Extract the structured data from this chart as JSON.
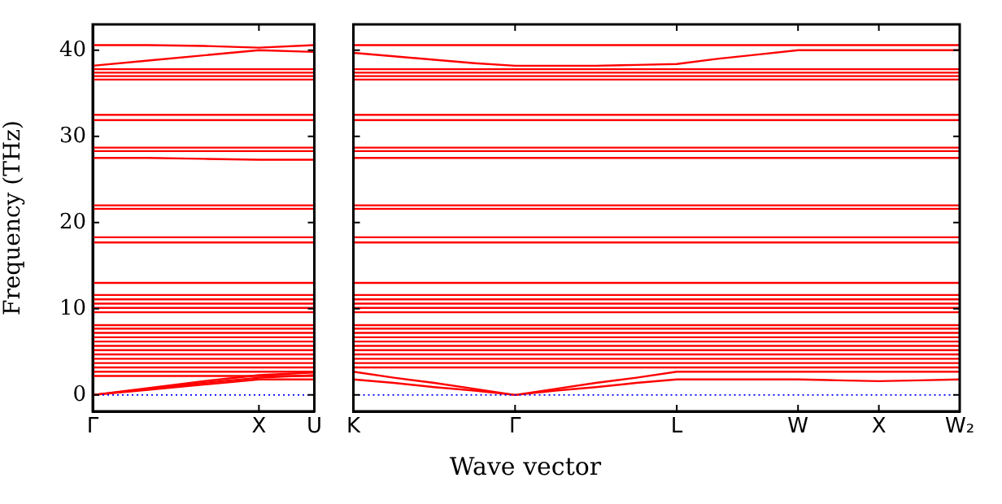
{
  "chart_data": [
    {
      "type": "line",
      "ylabel": "Frequency (THz)",
      "categories": [
        "Γ",
        null,
        null,
        "X",
        "U"
      ],
      "ylim": [
        -1.9,
        43
      ],
      "yticks": [
        0,
        10,
        20,
        30,
        40
      ],
      "marker": "none",
      "line_style": "solid",
      "legend": false,
      "ref_lines": [
        {
          "axis": "y",
          "value": 0,
          "color": "#0000ff",
          "line_style": "dotted"
        }
      ],
      "series": [
        {
          "color": "#ff0000",
          "values": [
            0,
            0.6,
            1.2,
            1.8,
            1.8
          ]
        },
        {
          "color": "#ff0000",
          "values": [
            0,
            0.7,
            1.4,
            2.0,
            2.3
          ]
        },
        {
          "color": "#ff0000",
          "values": [
            0,
            0.8,
            1.6,
            2.3,
            2.6
          ]
        },
        {
          "color": "#ff0000",
          "values": [
            2.2,
            2.2,
            2.2,
            2.2,
            2.2
          ]
        },
        {
          "color": "#ff0000",
          "values": [
            2.7,
            2.7,
            2.7,
            2.7,
            2.7
          ]
        },
        {
          "color": "#ff0000",
          "values": [
            3.2,
            3.2,
            3.2,
            3.2,
            3.2
          ]
        },
        {
          "color": "#ff0000",
          "values": [
            3.7,
            3.7,
            3.7,
            3.7,
            3.7
          ]
        },
        {
          "color": "#ff0000",
          "values": [
            4.2,
            4.2,
            4.2,
            4.2,
            4.2
          ]
        },
        {
          "color": "#ff0000",
          "values": [
            4.7,
            4.7,
            4.7,
            4.7,
            4.7
          ]
        },
        {
          "color": "#ff0000",
          "values": [
            5.2,
            5.2,
            5.2,
            5.2,
            5.2
          ]
        },
        {
          "color": "#ff0000",
          "values": [
            5.7,
            5.7,
            5.7,
            5.7,
            5.7
          ]
        },
        {
          "color": "#ff0000",
          "values": [
            6.2,
            6.2,
            6.2,
            6.2,
            6.2
          ]
        },
        {
          "color": "#ff0000",
          "values": [
            6.7,
            6.7,
            6.7,
            6.7,
            6.7
          ]
        },
        {
          "color": "#ff0000",
          "values": [
            7.2,
            7.2,
            7.2,
            7.2,
            7.2
          ]
        },
        {
          "color": "#ff0000",
          "values": [
            7.7,
            7.7,
            7.7,
            7.7,
            7.7
          ]
        },
        {
          "color": "#ff0000",
          "values": [
            8.1,
            8.1,
            8.1,
            8.1,
            8.1
          ]
        },
        {
          "color": "#ff0000",
          "values": [
            9.6,
            9.6,
            9.6,
            9.6,
            9.6
          ]
        },
        {
          "color": "#ff0000",
          "values": [
            10.1,
            10.1,
            10.1,
            10.1,
            10.1
          ]
        },
        {
          "color": "#ff0000",
          "values": [
            10.6,
            10.6,
            10.6,
            10.6,
            10.6
          ]
        },
        {
          "color": "#ff0000",
          "values": [
            11.1,
            11.1,
            11.1,
            11.1,
            11.1
          ]
        },
        {
          "color": "#ff0000",
          "values": [
            11.6,
            11.6,
            11.6,
            11.6,
            11.6
          ]
        },
        {
          "color": "#ff0000",
          "values": [
            13.0,
            13.0,
            13.0,
            13.0,
            13.0
          ]
        },
        {
          "color": "#ff0000",
          "values": [
            17.7,
            17.7,
            17.7,
            17.7,
            17.7
          ]
        },
        {
          "color": "#ff0000",
          "values": [
            18.3,
            18.3,
            18.3,
            18.3,
            18.3
          ]
        },
        {
          "color": "#ff0000",
          "values": [
            21.6,
            21.6,
            21.6,
            21.6,
            21.6
          ]
        },
        {
          "color": "#ff0000",
          "values": [
            22.0,
            22.0,
            22.0,
            22.0,
            22.0
          ]
        },
        {
          "color": "#ff0000",
          "values": [
            27.5,
            27.5,
            27.4,
            27.3,
            27.3
          ]
        },
        {
          "color": "#ff0000",
          "values": [
            28.3,
            28.3,
            28.3,
            28.3,
            28.3
          ]
        },
        {
          "color": "#ff0000",
          "values": [
            28.7,
            28.7,
            28.7,
            28.7,
            28.7
          ]
        },
        {
          "color": "#ff0000",
          "values": [
            31.9,
            31.9,
            31.9,
            31.9,
            31.9
          ]
        },
        {
          "color": "#ff0000",
          "values": [
            32.5,
            32.5,
            32.5,
            32.5,
            32.5
          ]
        },
        {
          "color": "#ff0000",
          "values": [
            36.6,
            36.6,
            36.6,
            36.6,
            36.6
          ]
        },
        {
          "color": "#ff0000",
          "values": [
            37.0,
            37.0,
            37.0,
            37.0,
            37.0
          ]
        },
        {
          "color": "#ff0000",
          "values": [
            37.4,
            37.4,
            37.4,
            37.4,
            37.4
          ]
        },
        {
          "color": "#ff0000",
          "values": [
            37.8,
            37.8,
            37.8,
            37.8,
            37.8
          ]
        },
        {
          "color": "#ff0000",
          "values": [
            38.2,
            38.8,
            39.4,
            40.0,
            39.8
          ]
        },
        {
          "color": "#ff0000",
          "values": [
            40.6,
            40.6,
            40.5,
            40.3,
            40.6
          ]
        }
      ]
    },
    {
      "type": "line",
      "xlabel": "Wave vector",
      "categories": [
        "K",
        null,
        null,
        null,
        "Γ",
        null,
        null,
        null,
        "L",
        null,
        null,
        "W",
        null,
        "X",
        null,
        "W₂"
      ],
      "ylim": [
        -1.9,
        43
      ],
      "yticks": [
        0,
        10,
        20,
        30,
        40
      ],
      "tick_labels": "x",
      "marker": "none",
      "line_style": "solid",
      "legend": false,
      "ref_lines": [
        {
          "axis": "y",
          "value": 0,
          "color": "#0000ff",
          "line_style": "dotted"
        }
      ],
      "series": [
        {
          "color": "#ff0000",
          "values": [
            1.8,
            1.4,
            0.9,
            0.5,
            0,
            0.5,
            0.9,
            1.4,
            1.8,
            1.8,
            1.8,
            1.8,
            1.7,
            1.6,
            1.7,
            1.8
          ]
        },
        {
          "color": "#ff0000",
          "values": [
            2.7,
            2.0,
            1.4,
            0.7,
            0,
            0.7,
            1.4,
            2.0,
            2.7,
            2.7,
            2.7,
            2.7,
            2.7,
            2.7,
            2.7,
            2.7
          ]
        },
        {
          "color": "#ff0000",
          "values": [
            3.2,
            3.2,
            3.2,
            3.2,
            3.2,
            3.2,
            3.2,
            3.2,
            3.2,
            3.2,
            3.2,
            3.2,
            3.2,
            3.2,
            3.2,
            3.2
          ]
        },
        {
          "color": "#ff0000",
          "values": [
            3.7,
            3.7,
            3.7,
            3.7,
            3.7,
            3.7,
            3.7,
            3.7,
            3.7,
            3.7,
            3.7,
            3.7,
            3.7,
            3.7,
            3.7,
            3.7
          ]
        },
        {
          "color": "#ff0000",
          "values": [
            4.2,
            4.2,
            4.2,
            4.2,
            4.2,
            4.2,
            4.2,
            4.2,
            4.2,
            4.2,
            4.2,
            4.2,
            4.2,
            4.2,
            4.2,
            4.2
          ]
        },
        {
          "color": "#ff0000",
          "values": [
            4.7,
            4.7,
            4.7,
            4.7,
            4.7,
            4.7,
            4.7,
            4.7,
            4.7,
            4.7,
            4.7,
            4.7,
            4.7,
            4.7,
            4.7,
            4.7
          ]
        },
        {
          "color": "#ff0000",
          "values": [
            5.2,
            5.2,
            5.2,
            5.2,
            5.2,
            5.2,
            5.2,
            5.2,
            5.2,
            5.2,
            5.2,
            5.2,
            5.2,
            5.2,
            5.2,
            5.2
          ]
        },
        {
          "color": "#ff0000",
          "values": [
            5.7,
            5.7,
            5.7,
            5.7,
            5.7,
            5.7,
            5.7,
            5.7,
            5.7,
            5.7,
            5.7,
            5.7,
            5.7,
            5.7,
            5.7,
            5.7
          ]
        },
        {
          "color": "#ff0000",
          "values": [
            6.2,
            6.2,
            6.2,
            6.2,
            6.2,
            6.2,
            6.2,
            6.2,
            6.2,
            6.2,
            6.2,
            6.2,
            6.2,
            6.2,
            6.2,
            6.2
          ]
        },
        {
          "color": "#ff0000",
          "values": [
            6.7,
            6.7,
            6.7,
            6.7,
            6.7,
            6.7,
            6.7,
            6.7,
            6.7,
            6.7,
            6.7,
            6.7,
            6.7,
            6.7,
            6.7,
            6.7
          ]
        },
        {
          "color": "#ff0000",
          "values": [
            7.2,
            7.2,
            7.2,
            7.2,
            7.2,
            7.2,
            7.2,
            7.2,
            7.2,
            7.2,
            7.2,
            7.2,
            7.2,
            7.2,
            7.2,
            7.2
          ]
        },
        {
          "color": "#ff0000",
          "values": [
            7.7,
            7.7,
            7.7,
            7.7,
            7.7,
            7.7,
            7.7,
            7.7,
            7.7,
            7.7,
            7.7,
            7.7,
            7.7,
            7.7,
            7.7,
            7.7
          ]
        },
        {
          "color": "#ff0000",
          "values": [
            8.1,
            8.1,
            8.1,
            8.1,
            8.1,
            8.1,
            8.1,
            8.1,
            8.1,
            8.1,
            8.1,
            8.1,
            8.1,
            8.1,
            8.1,
            8.1
          ]
        },
        {
          "color": "#ff0000",
          "values": [
            9.6,
            9.6,
            9.6,
            9.6,
            9.6,
            9.6,
            9.6,
            9.6,
            9.6,
            9.6,
            9.6,
            9.6,
            9.6,
            9.6,
            9.6,
            9.6
          ]
        },
        {
          "color": "#ff0000",
          "values": [
            10.1,
            10.1,
            10.1,
            10.1,
            10.1,
            10.1,
            10.1,
            10.1,
            10.1,
            10.1,
            10.1,
            10.1,
            10.1,
            10.1,
            10.1,
            10.1
          ]
        },
        {
          "color": "#ff0000",
          "values": [
            10.6,
            10.6,
            10.6,
            10.6,
            10.6,
            10.6,
            10.6,
            10.6,
            10.6,
            10.6,
            10.6,
            10.6,
            10.6,
            10.6,
            10.6,
            10.6
          ]
        },
        {
          "color": "#ff0000",
          "values": [
            11.1,
            11.1,
            11.1,
            11.1,
            11.1,
            11.1,
            11.1,
            11.1,
            11.1,
            11.1,
            11.1,
            11.1,
            11.1,
            11.1,
            11.1,
            11.1
          ]
        },
        {
          "color": "#ff0000",
          "values": [
            11.6,
            11.6,
            11.6,
            11.6,
            11.6,
            11.6,
            11.6,
            11.6,
            11.6,
            11.6,
            11.6,
            11.6,
            11.6,
            11.6,
            11.6,
            11.6
          ]
        },
        {
          "color": "#ff0000",
          "values": [
            13.0,
            13.0,
            13.0,
            13.0,
            13.0,
            13.0,
            13.0,
            13.0,
            13.0,
            13.0,
            13.0,
            13.0,
            13.0,
            13.0,
            13.0,
            13.0
          ]
        },
        {
          "color": "#ff0000",
          "values": [
            17.7,
            17.7,
            17.7,
            17.7,
            17.7,
            17.7,
            17.7,
            17.7,
            17.7,
            17.7,
            17.7,
            17.7,
            17.7,
            17.7,
            17.7,
            17.7
          ]
        },
        {
          "color": "#ff0000",
          "values": [
            18.3,
            18.3,
            18.3,
            18.3,
            18.3,
            18.3,
            18.3,
            18.3,
            18.3,
            18.3,
            18.3,
            18.3,
            18.3,
            18.3,
            18.3,
            18.3
          ]
        },
        {
          "color": "#ff0000",
          "values": [
            21.6,
            21.6,
            21.6,
            21.6,
            21.6,
            21.6,
            21.6,
            21.6,
            21.6,
            21.6,
            21.6,
            21.6,
            21.6,
            21.6,
            21.6,
            21.6
          ]
        },
        {
          "color": "#ff0000",
          "values": [
            22.0,
            22.0,
            22.0,
            22.0,
            22.0,
            22.0,
            22.0,
            22.0,
            22.0,
            22.0,
            22.0,
            22.0,
            22.0,
            22.0,
            22.0,
            22.0
          ]
        },
        {
          "color": "#ff0000",
          "values": [
            27.5,
            27.5,
            27.5,
            27.5,
            27.5,
            27.5,
            27.5,
            27.5,
            27.5,
            27.5,
            27.5,
            27.5,
            27.5,
            27.5,
            27.5,
            27.5
          ]
        },
        {
          "color": "#ff0000",
          "values": [
            28.3,
            28.3,
            28.3,
            28.3,
            28.3,
            28.3,
            28.3,
            28.3,
            28.3,
            28.3,
            28.3,
            28.3,
            28.3,
            28.3,
            28.3,
            28.3
          ]
        },
        {
          "color": "#ff0000",
          "values": [
            28.7,
            28.7,
            28.7,
            28.7,
            28.7,
            28.7,
            28.7,
            28.7,
            28.7,
            28.7,
            28.7,
            28.7,
            28.7,
            28.7,
            28.7,
            28.7
          ]
        },
        {
          "color": "#ff0000",
          "values": [
            31.9,
            31.9,
            31.9,
            31.9,
            31.9,
            31.9,
            31.9,
            31.9,
            31.9,
            31.9,
            31.9,
            31.9,
            31.9,
            31.9,
            31.9,
            31.9
          ]
        },
        {
          "color": "#ff0000",
          "values": [
            32.5,
            32.5,
            32.5,
            32.5,
            32.5,
            32.5,
            32.5,
            32.5,
            32.5,
            32.5,
            32.5,
            32.5,
            32.5,
            32.5,
            32.5,
            32.5
          ]
        },
        {
          "color": "#ff0000",
          "values": [
            36.6,
            36.6,
            36.6,
            36.6,
            36.6,
            36.6,
            36.6,
            36.6,
            36.6,
            36.6,
            36.6,
            36.6,
            36.6,
            36.6,
            36.6,
            36.6
          ]
        },
        {
          "color": "#ff0000",
          "values": [
            37.0,
            37.0,
            37.0,
            37.0,
            37.0,
            37.0,
            37.0,
            37.0,
            37.0,
            37.0,
            37.0,
            37.0,
            37.0,
            37.0,
            37.0,
            37.0
          ]
        },
        {
          "color": "#ff0000",
          "values": [
            37.4,
            37.4,
            37.4,
            37.4,
            37.4,
            37.4,
            37.4,
            37.4,
            37.4,
            37.4,
            37.4,
            37.4,
            37.4,
            37.4,
            37.4,
            37.4
          ]
        },
        {
          "color": "#ff0000",
          "values": [
            37.8,
            37.8,
            37.8,
            37.8,
            37.8,
            37.8,
            37.8,
            37.8,
            37.8,
            37.8,
            37.8,
            37.8,
            37.8,
            37.8,
            37.8,
            37.8
          ]
        },
        {
          "color": "#ff0000",
          "values": [
            39.7,
            39.3,
            38.9,
            38.5,
            38.2,
            38.2,
            38.2,
            38.3,
            38.4,
            39.0,
            39.5,
            40.0,
            40.0,
            40.0,
            40.0,
            40.0
          ]
        },
        {
          "color": "#ff0000",
          "values": [
            40.6,
            40.6,
            40.6,
            40.6,
            40.6,
            40.6,
            40.6,
            40.6,
            40.6,
            40.6,
            40.6,
            40.6,
            40.6,
            40.6,
            40.6,
            40.6
          ]
        }
      ]
    }
  ]
}
